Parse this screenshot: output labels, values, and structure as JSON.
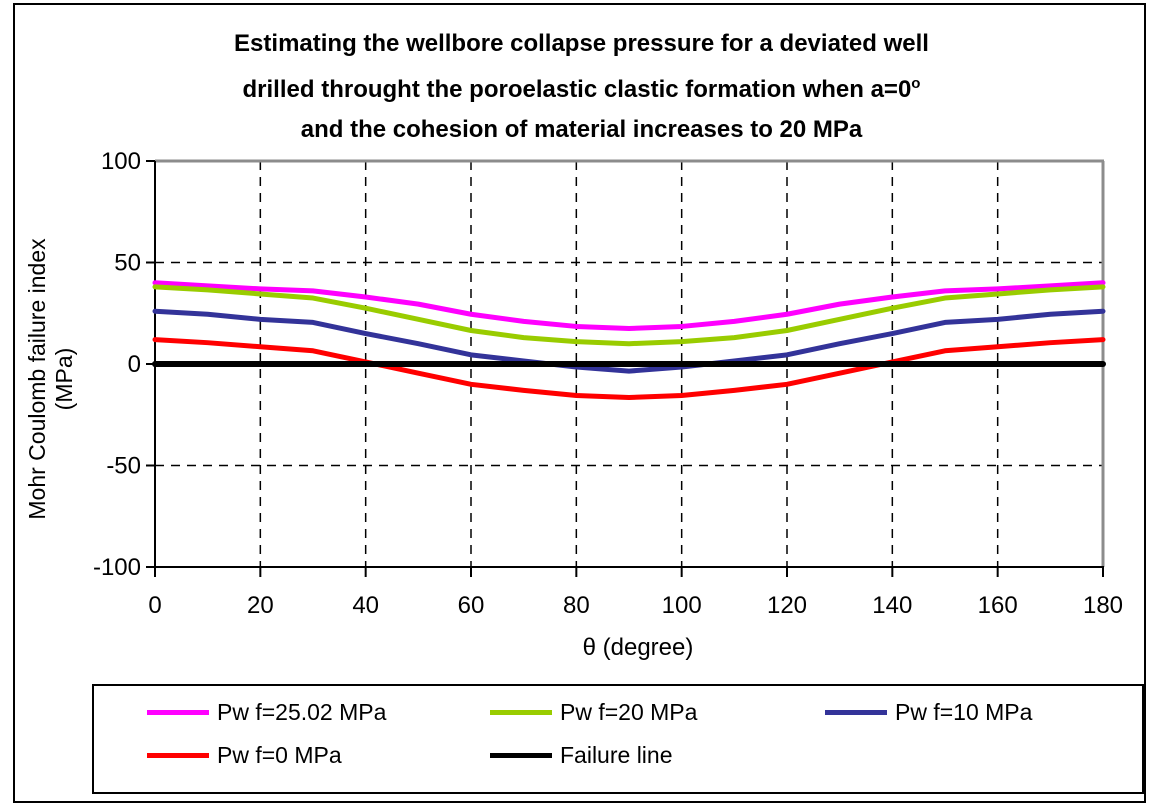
{
  "window": {
    "background": "#FFFFFF",
    "frame_border_color": "#000000"
  },
  "title": {
    "line1": "Estimating the wellbore collapse pressure for a deviated well",
    "line2": "drilled throught the poroelastic clastic formation when a=0",
    "line2_superscript": "o",
    "line3": "and the cohesion of material increases to 20 MPa"
  },
  "axes": {
    "y_title_line1": "Mohr Coulomb failure index",
    "y_title_line2": "(MPa)",
    "x_title": "θ (degree)"
  },
  "chart_data": {
    "type": "line",
    "title": "Estimating the wellbore collapse pressure for a deviated well drilled throught the poroelastic clastic formation when a=0° and the cohesion of material increases to 20 MPa",
    "xlabel": "θ (degree)",
    "ylabel": "Mohr Coulomb failure index (MPa)",
    "xlim": [
      0,
      180
    ],
    "ylim": [
      -100,
      100
    ],
    "x_ticks": [
      0,
      20,
      40,
      60,
      80,
      100,
      120,
      140,
      160,
      180
    ],
    "y_ticks": [
      100,
      50,
      0,
      -50,
      -100
    ],
    "grid": {
      "horizontal_dashed_at": [
        50,
        -50
      ],
      "vertical_dashed_at": [
        20,
        40,
        60,
        80,
        100,
        120,
        140,
        160
      ],
      "style": "dashed-black"
    },
    "legend_position": "bottom",
    "x": [
      0,
      10,
      20,
      30,
      40,
      50,
      60,
      70,
      80,
      90,
      100,
      110,
      120,
      130,
      140,
      150,
      160,
      170,
      180
    ],
    "series": [
      {
        "name": "Pw f=25.02 MPa",
        "color": "#FF00FF",
        "values": [
          40,
          38.5,
          37,
          36,
          33,
          29.5,
          24.5,
          21,
          18.5,
          17.5,
          18.5,
          21,
          24.5,
          29.5,
          33,
          36,
          37,
          38.5,
          40
        ]
      },
      {
        "name": "Pw f=20 MPa",
        "color": "#99CC00",
        "values": [
          38,
          36.5,
          34.5,
          32.5,
          27.5,
          22,
          16.5,
          13,
          11,
          10,
          11,
          13,
          16.5,
          22,
          27.5,
          32.5,
          34.5,
          36.5,
          38
        ]
      },
      {
        "name": "Pw f=10 MPa",
        "color": "#333399",
        "values": [
          26,
          24.5,
          22,
          20.5,
          15,
          10,
          4.5,
          1.5,
          -1.5,
          -3.5,
          -1.5,
          1.5,
          4.5,
          10,
          15,
          20.5,
          22,
          24.5,
          26
        ]
      },
      {
        "name": "Pw f=0 MPa",
        "color": "#FF0000",
        "values": [
          12,
          10.5,
          8.5,
          6.5,
          1,
          -4.5,
          -10,
          -13,
          -15.5,
          -16.5,
          -15.5,
          -13,
          -10,
          -4.5,
          1,
          6.5,
          8.5,
          10.5,
          12
        ]
      },
      {
        "name": "Failure line",
        "color": "#000000",
        "values": [
          0,
          0,
          0,
          0,
          0,
          0,
          0,
          0,
          0,
          0,
          0,
          0,
          0,
          0,
          0,
          0,
          0,
          0,
          0
        ]
      }
    ]
  }
}
